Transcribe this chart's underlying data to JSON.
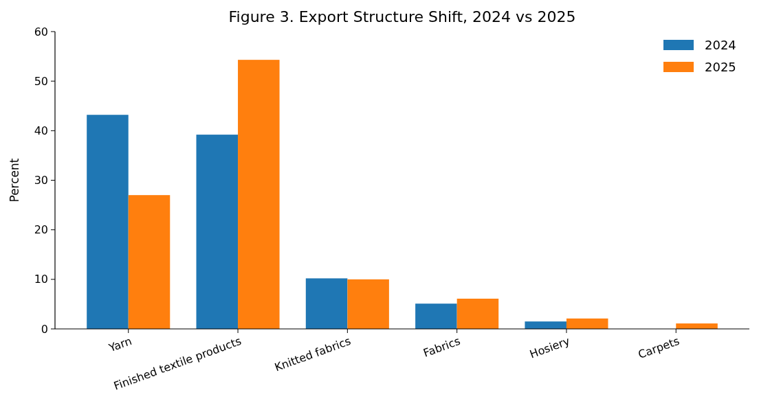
{
  "chart_data": {
    "type": "bar",
    "title": "Figure 3. Export Structure Shift, 2024 vs 2025",
    "ylabel": "Percent",
    "categories": [
      "Yarn",
      "Finished textile products",
      "Knitted fabrics",
      "Fabrics",
      "Hosiery",
      "Carpets"
    ],
    "series": [
      {
        "name": "2024",
        "color": "#1f77b4",
        "values": [
          43.2,
          39.2,
          10.2,
          5.1,
          1.5,
          0
        ]
      },
      {
        "name": "2025",
        "color": "#ff7f0e",
        "values": [
          27.0,
          54.3,
          10.0,
          6.1,
          2.1,
          1.1
        ]
      }
    ],
    "ylim": [
      0,
      60
    ],
    "yticks": [
      0,
      10,
      20,
      30,
      40,
      50,
      60
    ],
    "legend": "top right",
    "grid": false
  }
}
